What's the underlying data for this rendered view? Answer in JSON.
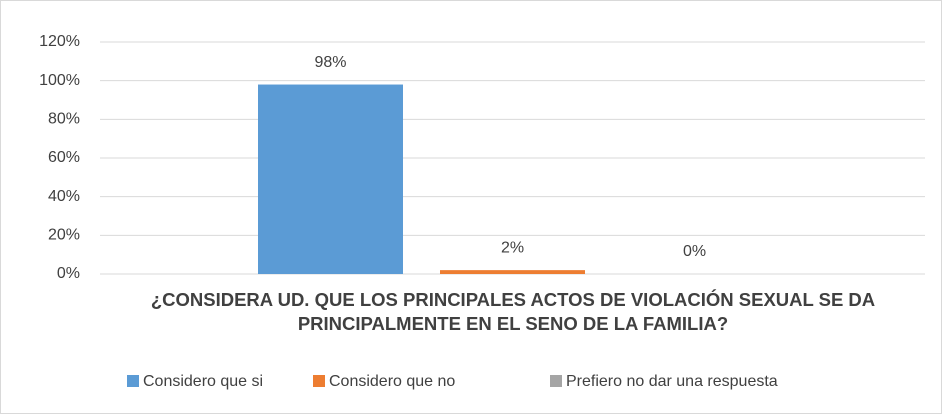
{
  "chart_data": {
    "type": "bar",
    "title": "¿CONSIDERA UD. QUE LOS PRINCIPALES ACTOS DE VIOLACIÓN SEXUAL SE DA PRINCIPALMENTE EN EL SENO DE LA FAMILIA?",
    "categories": [
      null
    ],
    "series": [
      {
        "name": "Considero que si",
        "color": "#5b9bd5",
        "values": [
          98
        ],
        "value_labels": [
          "98%"
        ]
      },
      {
        "name": "Considero que no",
        "color": "#ed7d31",
        "values": [
          2
        ],
        "value_labels": [
          "2%"
        ]
      },
      {
        "name": "Prefiero no dar una respuesta",
        "color": "#a5a5a5",
        "values": [
          0
        ],
        "value_labels": [
          "0%"
        ]
      }
    ],
    "ylim": [
      0,
      120
    ],
    "yticks": [
      {
        "value": 0,
        "label": "0%"
      },
      {
        "value": 20,
        "label": "20%"
      },
      {
        "value": 40,
        "label": "40%"
      },
      {
        "value": 60,
        "label": "60%"
      },
      {
        "value": 80,
        "label": "80%"
      },
      {
        "value": 100,
        "label": "100%"
      },
      {
        "value": 120,
        "label": "120%"
      }
    ],
    "grid": true,
    "legend": "bottom"
  }
}
